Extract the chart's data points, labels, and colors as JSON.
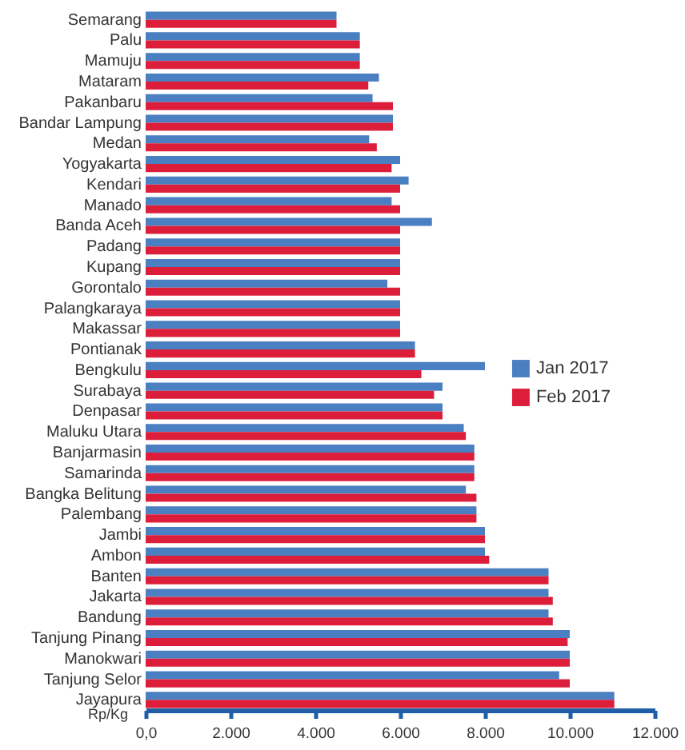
{
  "chart_data": {
    "type": "bar",
    "orientation": "horizontal",
    "xlabel": "Rp/Kg",
    "legend": "right",
    "categories": [
      "Semarang",
      "Palu",
      "Mamuju",
      "Mataram",
      "Pakanbaru",
      "Bandar Lampung",
      "Medan",
      "Yogyakarta",
      "Kendari",
      "Manado",
      "Banda Aceh",
      "Padang",
      "Kupang",
      "Gorontalo",
      "Palangkaraya",
      "Makassar",
      "Pontianak",
      "Bengkulu",
      "Surabaya",
      "Denpasar",
      "Maluku Utara",
      "Banjarmasin",
      "Samarinda",
      "Bangka Belitung",
      "Palembang",
      "Jambi",
      "Ambon",
      "Banten",
      "Jakarta",
      "Bandung",
      "Tanjung Pinang",
      "Manokwari",
      "Tanjung Selor",
      "Jayapura"
    ],
    "series": [
      {
        "name": "Jan 2017",
        "color": "#4a7fc1",
        "values": [
          4500,
          5050,
          5050,
          5500,
          5350,
          5830,
          5270,
          6000,
          6200,
          5800,
          6750,
          6000,
          6000,
          5700,
          6000,
          6000,
          6350,
          8000,
          7000,
          7000,
          7500,
          7750,
          7750,
          7550,
          7800,
          8000,
          8000,
          9500,
          9500,
          9500,
          10000,
          10000,
          9750,
          11050
        ]
      },
      {
        "name": "Feb 2017",
        "color": "#dc1e3a",
        "values": [
          4500,
          5050,
          5050,
          5250,
          5830,
          5830,
          5450,
          5800,
          6000,
          6000,
          6000,
          6000,
          6000,
          6000,
          6000,
          6000,
          6350,
          6500,
          6800,
          7000,
          7550,
          7750,
          7750,
          7800,
          7800,
          8000,
          8100,
          9500,
          9600,
          9600,
          9950,
          10000,
          10000,
          11050
        ]
      }
    ],
    "xlim": [
      0,
      12000
    ],
    "xticks": [
      {
        "value": 0,
        "label": "0,0"
      },
      {
        "value": 2000,
        "label": "2.000"
      },
      {
        "value": 4000,
        "label": "4.000"
      },
      {
        "value": 6000,
        "label": "6.000"
      },
      {
        "value": 8000,
        "label": "8.000"
      },
      {
        "value": 10000,
        "label": "10.000"
      },
      {
        "value": 12000,
        "label": "12.000"
      }
    ]
  }
}
